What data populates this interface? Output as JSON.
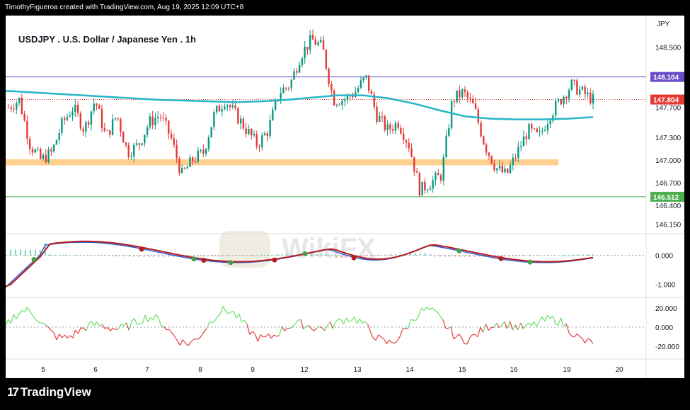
{
  "header": {
    "credit": "TimothyFigueroa created with TradingView.com, Aug 19, 2025 12:09 UTC+8"
  },
  "footer": {
    "brand": "TradingView"
  },
  "watermark": "WikiFX",
  "colors": {
    "ma": "#26b5c8",
    "bull": "#089981",
    "bear": "#e53935",
    "support_zone": "#ffcf8f",
    "level_high": "#6a4cc9",
    "level_low": "#4caf50",
    "last_price": "#e53935",
    "macd": "#2a5cd6",
    "signal_up": "#43a047",
    "signal_down": "#b71c1c",
    "osc_up": "#66e066",
    "osc_down": "#e04040"
  },
  "chart_data": [
    {
      "type": "candlestick",
      "title": "USDJPY . U.S. Dollar / Japanese Yen . 1h",
      "currency": "JPY",
      "x_tick_labels": [
        "5",
        "6",
        "7",
        "8",
        "9",
        "12",
        "13",
        "14",
        "15",
        "16",
        "19",
        "20"
      ],
      "y_tick_labels": [
        "148.500",
        "147.700",
        "147.300",
        "147.000",
        "146.700",
        "146.400",
        "146.150"
      ],
      "ylim": [
        146.05,
        148.75
      ],
      "levels": [
        {
          "label": "148.104",
          "value": 148.104,
          "color": "#6a4cc9"
        },
        {
          "label": "146.512",
          "value": 146.512,
          "color": "#4caf50"
        }
      ],
      "last_price": {
        "label": "147.804",
        "value": 147.804
      },
      "support_zone": {
        "from": 146.93,
        "to": 147.01
      },
      "moving_average": [
        147.92,
        147.9,
        147.88,
        147.86,
        147.84,
        147.82,
        147.8,
        147.79,
        147.78,
        147.77,
        147.78,
        147.8,
        147.83,
        147.86,
        147.86,
        147.82,
        147.75,
        147.66,
        147.58,
        147.55,
        147.54,
        147.54,
        147.55,
        147.57
      ],
      "close_path": [
        147.7,
        147.8,
        147.2,
        147.0,
        147.1,
        147.5,
        147.7,
        147.4,
        147.8,
        147.3,
        147.6,
        147.1,
        147.2,
        147.5,
        147.6,
        147.3,
        146.8,
        147.0,
        147.1,
        147.6,
        147.8,
        147.6,
        147.4,
        147.2,
        147.4,
        147.9,
        148.0,
        148.4,
        148.6,
        148.5,
        147.8,
        147.8,
        147.9,
        148.1,
        147.6,
        147.4,
        147.5,
        147.2,
        146.6,
        146.7,
        146.8,
        147.8,
        147.9,
        147.7,
        147.2,
        146.9,
        146.8,
        147.1,
        147.4,
        147.3,
        147.6,
        147.8,
        148.0,
        147.9,
        147.8
      ]
    },
    {
      "type": "indicator-macd",
      "y_tick_labels": [
        "0.000",
        "-1.000"
      ],
      "ylim": [
        -1.3,
        0.5
      ]
    },
    {
      "type": "indicator-oscillator",
      "y_tick_labels": [
        "20.000",
        "0.000",
        "-20.000"
      ],
      "ylim": [
        -28,
        28
      ]
    }
  ]
}
